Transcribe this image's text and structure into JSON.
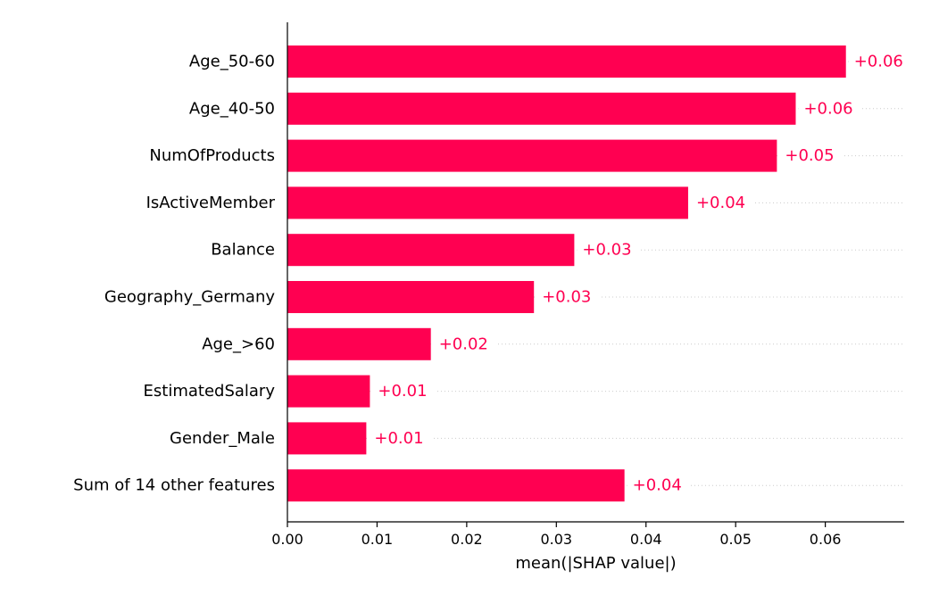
{
  "chart_data": {
    "type": "bar",
    "orientation": "horizontal",
    "categories": [
      "Age_50-60",
      "Age_40-50",
      "NumOfProducts",
      "IsActiveMember",
      "Balance",
      "Geography_Germany",
      "Age_>60",
      "EstimatedSalary",
      "Gender_Male",
      "Sum of 14 other features"
    ],
    "values": [
      0.0623,
      0.0567,
      0.0546,
      0.0447,
      0.032,
      0.0275,
      0.016,
      0.0092,
      0.0088,
      0.0376
    ],
    "value_labels": [
      "+0.06",
      "+0.06",
      "+0.05",
      "+0.04",
      "+0.03",
      "+0.03",
      "+0.02",
      "+0.01",
      "+0.01",
      "+0.04"
    ],
    "title": "",
    "xlabel": "mean(|SHAP value|)",
    "ylabel": "",
    "xlim": [
      0,
      0.0688
    ],
    "xticks": [
      0.0,
      0.01,
      0.02,
      0.03,
      0.04,
      0.05,
      0.06
    ],
    "xtick_labels": [
      "0.00",
      "0.01",
      "0.02",
      "0.03",
      "0.04",
      "0.05",
      "0.06"
    ],
    "grid": "dotted row guide lines",
    "legend": "none",
    "colors": {
      "bar": "#ff0051",
      "value_text": "#ff0051",
      "axis": "#000000",
      "guide": "#cccccc"
    }
  }
}
